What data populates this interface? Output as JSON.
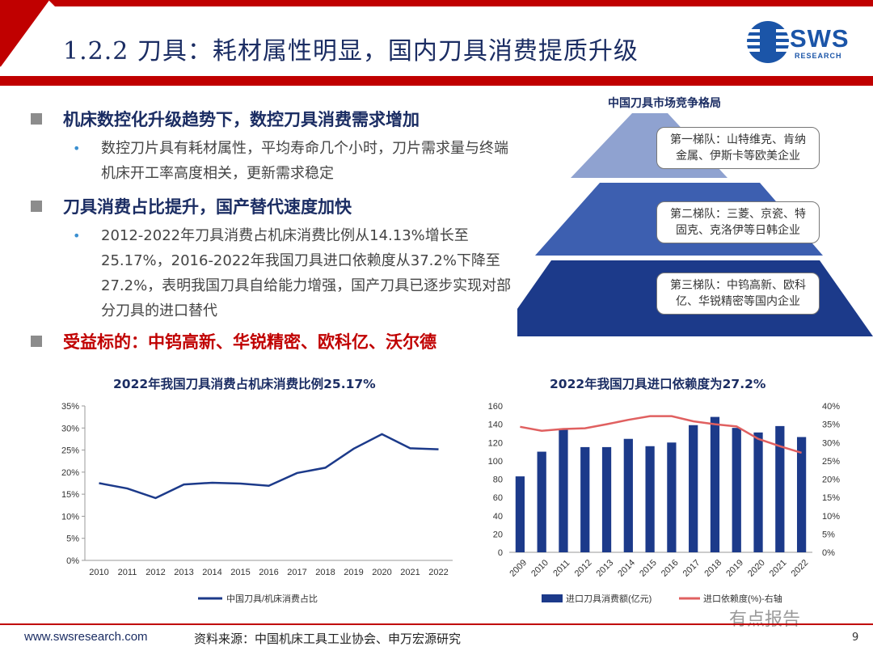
{
  "header": {
    "title": "1.2.2 刀具：耗材属性明显，国内刀具消费提质升级",
    "logo_text": "SWS",
    "logo_sub": "RESEARCH"
  },
  "bullets": [
    {
      "heading": "机床数控化升级趋势下，数控刀具消费需求增加",
      "body": "数控刀片具有耗材属性，平均寿命几个小时，刀片需求量与终端机床开工率高度相关，更新需求稳定"
    },
    {
      "heading": "刀具消费占比提升，国产替代速度加快",
      "body": "2012-2022年刀具消费占机床消费比例从14.13%增长至25.17%，2016-2022年我国刀具进口依赖度从37.2%下降至27.2%，表明我国刀具自给能力增强，国产刀具已逐步实现对部分刀具的进口替代"
    },
    {
      "heading": "受益标的：中钨高新、华锐精密、欧科亿、沃尔德",
      "body": ""
    }
  ],
  "pyramid": {
    "title": "中国刀具市场竞争格局",
    "tiers": [
      "第一梯队：山特维克、肯纳金属、伊斯卡等欧美企业",
      "第二梯队：三菱、京瓷、特固克、克洛伊等日韩企业",
      "第三梯队：中钨高新、欧科亿、华锐精密等国内企业"
    ],
    "colors": [
      "#8fa2d0",
      "#3d5fb0",
      "#1c3a8a"
    ]
  },
  "chart_data": [
    {
      "type": "line",
      "title": "2022年我国刀具消费占机床消费比例25.17%",
      "x": [
        "2010",
        "2011",
        "2012",
        "2013",
        "2014",
        "2015",
        "2016",
        "2017",
        "2018",
        "2019",
        "2020",
        "2021",
        "2022"
      ],
      "series": [
        {
          "name": "中国刀具/机床消费占比",
          "color": "#1c3a8a",
          "values": [
            17.5,
            16.3,
            14.13,
            17.2,
            17.6,
            17.4,
            16.9,
            19.8,
            21.0,
            25.3,
            28.6,
            25.4,
            25.17
          ]
        }
      ],
      "yticks": [
        "0%",
        "5%",
        "10%",
        "15%",
        "20%",
        "25%",
        "30%",
        "35%"
      ],
      "ylim": [
        0,
        35
      ]
    },
    {
      "type": "bar",
      "title": "2022年我国刀具进口依赖度为27.2%",
      "categories": [
        "2009",
        "2010",
        "2011",
        "2012",
        "2013",
        "2014",
        "2015",
        "2016",
        "2017",
        "2018",
        "2019",
        "2020",
        "2021",
        "2022"
      ],
      "series": [
        {
          "name": "进口刀具消费额(亿元)",
          "type": "bar",
          "axis": "left",
          "color": "#1c3a8a",
          "values": [
            83,
            110,
            135,
            115,
            115,
            124,
            116,
            120,
            139,
            148,
            136,
            131,
            138,
            126
          ]
        },
        {
          "name": "进口依赖度(%)-右轴",
          "type": "line",
          "axis": "right",
          "color": "#e06060",
          "values": [
            34.3,
            33.2,
            33.7,
            33.9,
            35.0,
            36.2,
            37.2,
            37.2,
            35.8,
            35.0,
            34.4,
            31.0,
            29.0,
            27.2
          ]
        }
      ],
      "yticks_left": [
        "0",
        "20",
        "40",
        "60",
        "80",
        "100",
        "120",
        "140",
        "160"
      ],
      "ylim_left": [
        0,
        160
      ],
      "yticks_right": [
        "0%",
        "5%",
        "10%",
        "15%",
        "20%",
        "25%",
        "30%",
        "35%",
        "40%"
      ],
      "ylim_right": [
        0,
        40
      ]
    }
  ],
  "footer": {
    "url": "www.swsresearch.com",
    "source": "资料来源：中国机床工具工业协会、申万宏源研究",
    "page": "9",
    "watermark": "有点报告"
  }
}
